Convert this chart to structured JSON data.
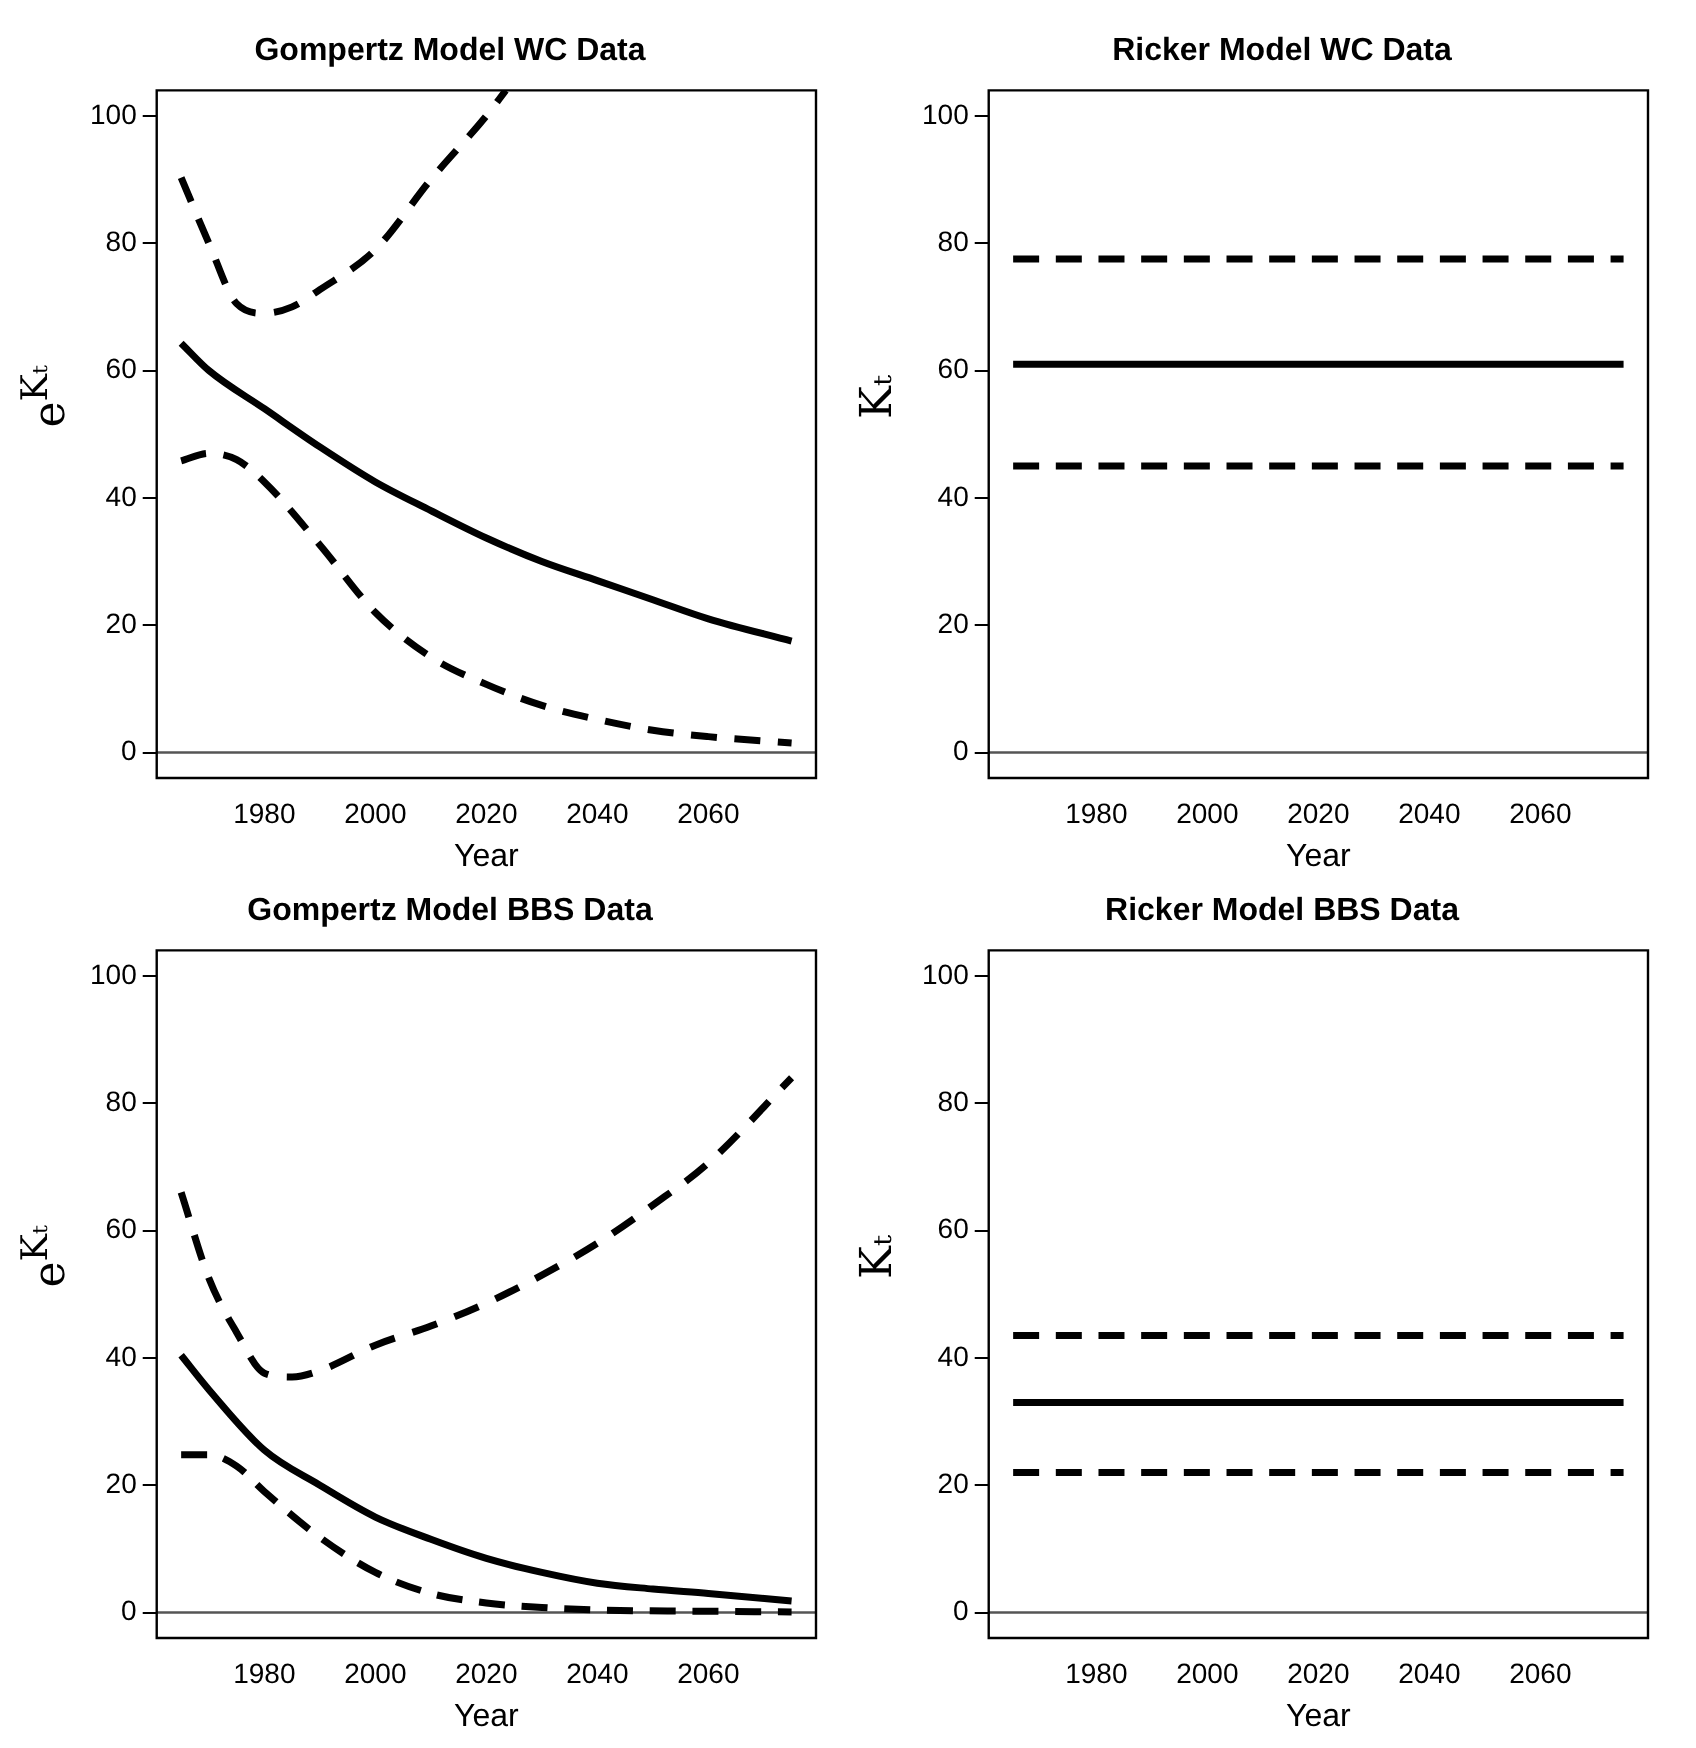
{
  "chart_data": [
    {
      "type": "line",
      "title": "Gompertz Model WC Data",
      "xlabel": "Year",
      "ylabel": "e$^{Kₜ}$",
      "xlim": [
        1960.6,
        2079.4
      ],
      "ylim": [
        -4,
        104
      ],
      "xticks": [
        1980,
        2000,
        2020,
        2040,
        2060
      ],
      "yticks": [
        0,
        20,
        40,
        60,
        80,
        100
      ],
      "marker": "none",
      "grid": false,
      "legend": false,
      "ref_lines": [
        {
          "axis": "y",
          "value": 0,
          "color": "#555555"
        }
      ],
      "series": [
        {
          "color": "#000000",
          "line_style": "solid",
          "x": [
            1965,
            1970,
            1980,
            1990,
            2000,
            2010,
            2020,
            2030,
            2040,
            2050,
            2060,
            2075
          ],
          "values": [
            64.3,
            60,
            54,
            48,
            42.5,
            38,
            33.7,
            30,
            27,
            24,
            21,
            17.5
          ]
        },
        {
          "color": "#000000",
          "line_style": "dashed",
          "x": [
            1965,
            1970,
            1975,
            1980,
            1985,
            1990,
            2000,
            2010,
            2020,
            2023.5
          ],
          "values": [
            90.3,
            80,
            70.5,
            69,
            70,
            72.7,
            79,
            90,
            100,
            104
          ]
        },
        {
          "color": "#000000",
          "line_style": "dashed",
          "x": [
            1965,
            1970,
            1975,
            1980,
            1990,
            2000,
            2010,
            2020,
            2030,
            2040,
            2050,
            2060,
            2075
          ],
          "values": [
            45.8,
            47,
            46,
            42.5,
            32.6,
            22,
            15,
            10.7,
            7.4,
            5.2,
            3.5,
            2.5,
            1.5
          ]
        }
      ]
    },
    {
      "type": "line",
      "title": "Ricker Model WC Data",
      "xlabel": "Year",
      "ylabel": "Kₜ",
      "xlim": [
        1960.6,
        2079.4
      ],
      "ylim": [
        -4,
        104
      ],
      "xticks": [
        1980,
        2000,
        2020,
        2040,
        2060
      ],
      "yticks": [
        0,
        20,
        40,
        60,
        80,
        100
      ],
      "marker": "none",
      "grid": false,
      "legend": false,
      "ref_lines": [
        {
          "axis": "y",
          "value": 0,
          "color": "#555555"
        }
      ],
      "series": [
        {
          "color": "#000000",
          "line_style": "solid",
          "x": [
            1965,
            2075
          ],
          "values": [
            61,
            61
          ]
        },
        {
          "color": "#000000",
          "line_style": "dashed",
          "x": [
            1965,
            2075
          ],
          "values": [
            77.5,
            77.5
          ]
        },
        {
          "color": "#000000",
          "line_style": "dashed",
          "x": [
            1965,
            2075
          ],
          "values": [
            45,
            45
          ]
        }
      ]
    },
    {
      "type": "line",
      "title": "Gompertz Model BBS Data",
      "xlabel": "Year",
      "ylabel": "e$^{Kₜ}$",
      "xlim": [
        1960.6,
        2079.4
      ],
      "ylim": [
        -4,
        104
      ],
      "xticks": [
        1980,
        2000,
        2020,
        2040,
        2060
      ],
      "yticks": [
        0,
        20,
        40,
        60,
        80,
        100
      ],
      "marker": "none",
      "grid": false,
      "legend": false,
      "ref_lines": [
        {
          "axis": "y",
          "value": 0,
          "color": "#555555"
        }
      ],
      "series": [
        {
          "color": "#000000",
          "line_style": "solid",
          "x": [
            1965,
            1970,
            1980,
            1990,
            2000,
            2010,
            2020,
            2030,
            2040,
            2050,
            2060,
            2075
          ],
          "values": [
            40.4,
            35,
            25.5,
            20,
            15,
            11.5,
            8.5,
            6.3,
            4.6,
            3.7,
            3,
            1.8
          ]
        },
        {
          "color": "#000000",
          "line_style": "dashed",
          "x": [
            1965,
            1970,
            1975,
            1980,
            1985,
            1990,
            2000,
            2010,
            2020,
            2030,
            2040,
            2050,
            2060,
            2075
          ],
          "values": [
            66,
            52.5,
            44,
            37.6,
            37,
            38,
            42,
            45,
            48.6,
            53,
            58,
            64,
            70.6,
            84
          ]
        },
        {
          "color": "#000000",
          "line_style": "dashed",
          "x": [
            1965,
            1970,
            1975,
            1980,
            1990,
            2000,
            2010,
            2020,
            2030,
            2040,
            2060,
            2075
          ],
          "values": [
            24.8,
            24.8,
            23,
            19,
            11.8,
            6.3,
            3,
            1.5,
            0.8,
            0.4,
            0.2,
            0.1
          ]
        }
      ]
    },
    {
      "type": "line",
      "title": "Ricker Model BBS Data",
      "xlabel": "Year",
      "ylabel": "Kₜ",
      "xlim": [
        1960.6,
        2079.4
      ],
      "ylim": [
        -4,
        104
      ],
      "xticks": [
        1980,
        2000,
        2020,
        2040,
        2060
      ],
      "yticks": [
        0,
        20,
        40,
        60,
        80,
        100
      ],
      "marker": "none",
      "grid": false,
      "legend": false,
      "ref_lines": [
        {
          "axis": "y",
          "value": 0,
          "color": "#555555"
        }
      ],
      "series": [
        {
          "color": "#000000",
          "line_style": "solid",
          "x": [
            1965,
            2075
          ],
          "values": [
            33,
            33
          ]
        },
        {
          "color": "#000000",
          "line_style": "dashed",
          "x": [
            1965,
            2075
          ],
          "values": [
            43.5,
            43.5
          ]
        },
        {
          "color": "#000000",
          "line_style": "dashed",
          "x": [
            1965,
            2075
          ],
          "values": [
            22,
            22
          ]
        }
      ]
    }
  ]
}
